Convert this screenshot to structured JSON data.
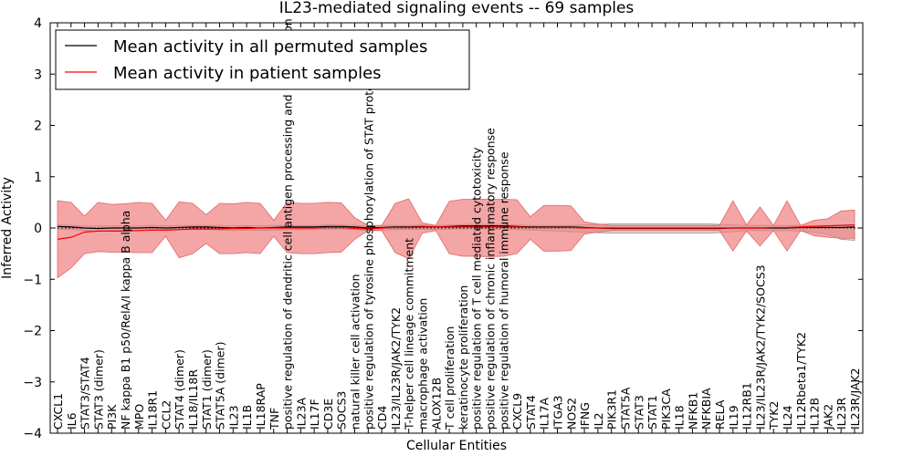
{
  "chart_data": {
    "type": "line",
    "title": "IL23-mediated signaling events -- 69 samples",
    "xlabel": "Cellular Entities",
    "ylabel": "Inferred Activity",
    "ylim": [
      -4,
      4
    ],
    "yticks": [
      4,
      3,
      2,
      1,
      0,
      -1,
      -2,
      -3,
      -4
    ],
    "ytick_labels": [
      "4",
      "3",
      "2",
      "1",
      "0",
      "−1",
      "−2",
      "−3",
      "−4"
    ],
    "legend_position": "top-left",
    "categories": [
      "CXCL1",
      "IL6",
      "STAT3/STAT4",
      "STAT3 (dimer)",
      "PI3K",
      "NF kappa B1 p50/RelA/I kappa B alpha",
      "MPO",
      "IL18R1",
      "CCL2",
      "STAT4 (dimer)",
      "IL18/IL18R",
      "STAT1 (dimer)",
      "STAT5A (dimer)",
      "IL23",
      "IL1B",
      "IL18RAP",
      "TNF",
      "positive regulation of dendritic cell antigen processing and presentation",
      "IL23A",
      "IL17F",
      "CD3E",
      "SOCS3",
      "natural killer cell activation",
      "positive regulation of tyrosine phosphorylation of STAT protein",
      "CD4",
      "IL23/IL23R/JAK2/TYK2",
      "T-helper cell lineage commitment",
      "macrophage activation",
      "ALOX12B",
      "T cell proliferation",
      "keratinocyte proliferation",
      "positive regulation of T cell mediated cytotoxicity",
      "positive regulation of chronic inflammatory response",
      "positive regulation of humoral immune response",
      "CXCL9",
      "STAT4",
      "IL17A",
      "ITGA3",
      "NOS2",
      "IFNG",
      "IL2",
      "PIK3R1",
      "STAT5A",
      "STAT3",
      "STAT1",
      "PIK3CA",
      "IL18",
      "NFKB1",
      "NFKBIA",
      "RELA",
      "IL19",
      "IL12RB1",
      "IL23/IL23R/JAK2/TYK2/SOCS3",
      "TYK2",
      "IL24",
      "IL12Rbeta1/TYK2",
      "IL12B",
      "JAK2",
      "IL23R",
      "IL23R/JAK2"
    ],
    "series": [
      {
        "name": "Mean activity in all permuted samples",
        "color": "#000000",
        "values": [
          0.03,
          0.02,
          0.0,
          -0.01,
          0.0,
          0.0,
          0.0,
          0.01,
          0.0,
          0.01,
          0.02,
          0.02,
          0.01,
          0.0,
          0.01,
          0.0,
          0.01,
          0.02,
          0.02,
          0.02,
          0.03,
          0.03,
          0.02,
          0.0,
          0.01,
          0.02,
          0.02,
          0.03,
          0.02,
          0.03,
          0.04,
          0.04,
          0.04,
          0.04,
          0.03,
          0.02,
          0.02,
          0.02,
          0.02,
          0.01,
          0.0,
          -0.01,
          -0.01,
          -0.01,
          -0.01,
          -0.01,
          -0.01,
          -0.01,
          -0.01,
          -0.01,
          0.0,
          0.0,
          0.0,
          0.0,
          0.0,
          0.01,
          0.01,
          0.01,
          0.01,
          0.02
        ],
        "band_upper": [
          0.06,
          0.05,
          0.04,
          0.04,
          0.04,
          0.04,
          0.04,
          0.05,
          0.04,
          0.05,
          0.05,
          0.05,
          0.05,
          0.04,
          0.05,
          0.04,
          0.05,
          0.05,
          0.05,
          0.05,
          0.06,
          0.06,
          0.05,
          0.04,
          0.05,
          0.05,
          0.05,
          0.06,
          0.05,
          0.06,
          0.07,
          0.07,
          0.07,
          0.07,
          0.06,
          0.05,
          0.05,
          0.05,
          0.05,
          0.06,
          0.07,
          0.08,
          0.08,
          0.08,
          0.08,
          0.08,
          0.08,
          0.08,
          0.08,
          0.07,
          0.06,
          0.05,
          0.05,
          0.05,
          0.05,
          0.05,
          0.05,
          0.05,
          0.06,
          0.06
        ],
        "band_lower": [
          -0.02,
          -0.03,
          -0.05,
          -0.06,
          -0.05,
          -0.05,
          -0.05,
          -0.04,
          -0.05,
          -0.04,
          -0.03,
          -0.03,
          -0.04,
          -0.05,
          -0.04,
          -0.05,
          -0.04,
          -0.03,
          -0.03,
          -0.03,
          -0.02,
          -0.02,
          -0.03,
          -0.05,
          -0.04,
          -0.03,
          -0.03,
          -0.02,
          -0.03,
          -0.02,
          -0.02,
          -0.02,
          -0.02,
          -0.02,
          -0.03,
          -0.04,
          -0.05,
          -0.06,
          -0.07,
          -0.08,
          -0.09,
          -0.1,
          -0.1,
          -0.1,
          -0.1,
          -0.1,
          -0.1,
          -0.1,
          -0.1,
          -0.09,
          -0.07,
          -0.05,
          -0.05,
          -0.05,
          -0.05,
          -0.06,
          -0.08,
          -0.12,
          -0.22,
          -0.24
        ]
      },
      {
        "name": "Mean activity in patient samples",
        "color": "#ff0000",
        "band_color": "#f08080",
        "values": [
          -0.22,
          -0.18,
          -0.08,
          -0.06,
          -0.06,
          -0.06,
          -0.05,
          -0.04,
          -0.04,
          -0.03,
          -0.02,
          -0.02,
          -0.02,
          -0.01,
          -0.01,
          0.0,
          0.0,
          0.0,
          0.0,
          0.0,
          0.01,
          0.01,
          -0.01,
          -0.02,
          0.0,
          0.01,
          0.01,
          0.02,
          0.02,
          0.02,
          0.02,
          0.02,
          0.02,
          0.02,
          0.02,
          0.01,
          0.01,
          0.01,
          0.01,
          0.0,
          0.0,
          0.0,
          0.0,
          0.0,
          0.0,
          0.0,
          0.0,
          0.0,
          0.0,
          0.0,
          0.0,
          0.0,
          0.0,
          0.01,
          0.01,
          0.02,
          0.03,
          0.04,
          0.05,
          0.06
        ],
        "band_upper": [
          0.53,
          0.5,
          0.23,
          0.5,
          0.46,
          0.47,
          0.5,
          0.48,
          0.15,
          0.51,
          0.48,
          0.26,
          0.48,
          0.47,
          0.5,
          0.48,
          0.15,
          0.5,
          0.48,
          0.48,
          0.5,
          0.49,
          0.2,
          0.05,
          0.05,
          0.48,
          0.57,
          0.1,
          0.05,
          0.52,
          0.56,
          0.56,
          0.56,
          0.56,
          0.55,
          0.22,
          0.44,
          0.44,
          0.43,
          0.12,
          0.08,
          0.05,
          0.05,
          0.05,
          0.05,
          0.05,
          0.05,
          0.05,
          0.05,
          0.05,
          0.53,
          0.06,
          0.41,
          0.05,
          0.53,
          0.05,
          0.15,
          0.18,
          0.33,
          0.35
        ],
        "band_lower": [
          -0.97,
          -0.78,
          -0.5,
          -0.46,
          -0.47,
          -0.47,
          -0.48,
          -0.48,
          -0.16,
          -0.58,
          -0.5,
          -0.3,
          -0.5,
          -0.5,
          -0.48,
          -0.5,
          -0.16,
          -0.48,
          -0.5,
          -0.5,
          -0.48,
          -0.47,
          -0.22,
          -0.05,
          -0.05,
          -0.48,
          -0.6,
          -0.1,
          -0.05,
          -0.5,
          -0.55,
          -0.55,
          -0.56,
          -0.55,
          -0.5,
          -0.22,
          -0.45,
          -0.45,
          -0.44,
          -0.12,
          -0.08,
          -0.05,
          -0.05,
          -0.05,
          -0.05,
          -0.05,
          -0.05,
          -0.05,
          -0.05,
          -0.05,
          -0.45,
          -0.06,
          -0.35,
          -0.05,
          -0.45,
          -0.05,
          -0.15,
          -0.18,
          -0.2,
          -0.2
        ]
      }
    ]
  }
}
